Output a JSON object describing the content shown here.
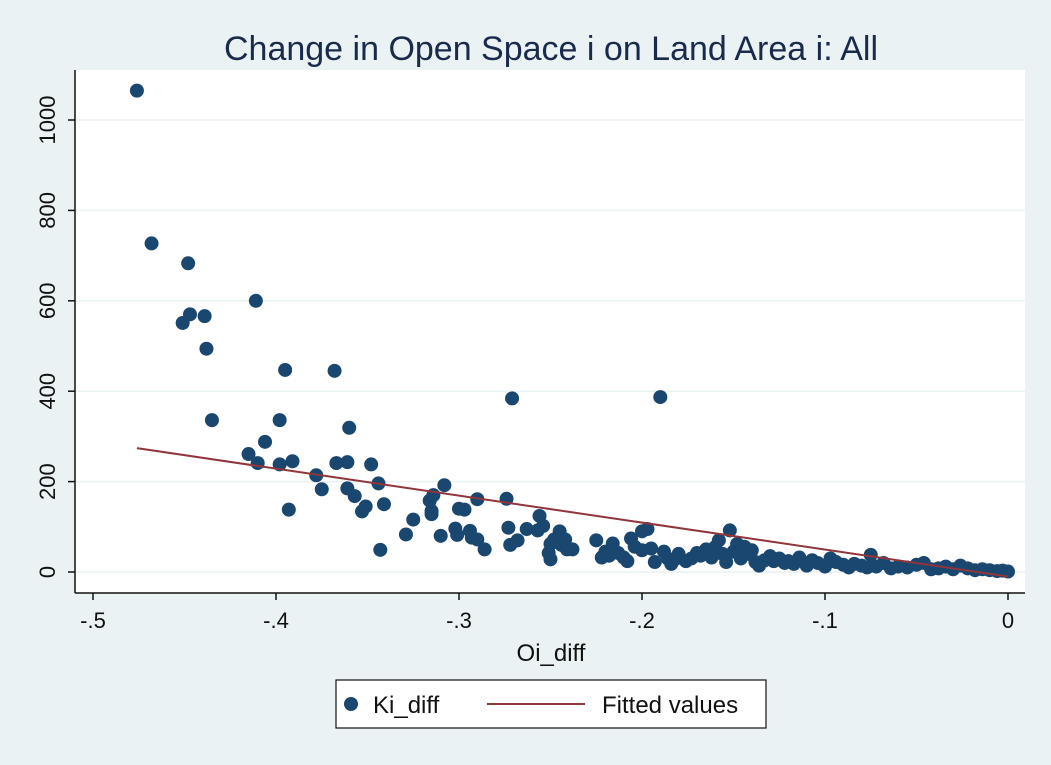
{
  "chart_data": {
    "type": "scatter",
    "title": "Change in Open Space i on Land Area i: All",
    "xlabel": "Oi_diff",
    "ylabel": "",
    "xlim": [
      -0.5,
      0
    ],
    "ylim": [
      0,
      1000
    ],
    "x_ticks": [
      -0.5,
      -0.4,
      -0.3,
      -0.2,
      -0.1,
      0
    ],
    "x_tick_labels": [
      "-.5",
      "-.4",
      "-.3",
      "-.2",
      "-.1",
      "0"
    ],
    "y_ticks": [
      0,
      200,
      400,
      600,
      800,
      1000
    ],
    "y_tick_labels": [
      "0",
      "200",
      "400",
      "600",
      "800",
      "1000"
    ],
    "grid": "horizontal",
    "legend": {
      "position": "bottom",
      "entries": [
        "Ki_diff",
        "Fitted values"
      ]
    },
    "colors": {
      "points": "#1a476f",
      "fit": "#90353b",
      "plot_bg": "#ffffff",
      "page_bg": "#eaf2f3",
      "grid": "#eaf2f3"
    },
    "series": [
      {
        "name": "Ki_diff",
        "kind": "scatter",
        "points": [
          [
            -0.476,
            1065
          ],
          [
            -0.468,
            727
          ],
          [
            -0.448,
            683
          ],
          [
            -0.451,
            551
          ],
          [
            -0.447,
            570
          ],
          [
            -0.439,
            566
          ],
          [
            -0.438,
            494
          ],
          [
            -0.435,
            336
          ],
          [
            -0.411,
            600
          ],
          [
            -0.415,
            261
          ],
          [
            -0.41,
            241
          ],
          [
            -0.406,
            288
          ],
          [
            -0.398,
            336
          ],
          [
            -0.398,
            238
          ],
          [
            -0.395,
            447
          ],
          [
            -0.393,
            138
          ],
          [
            -0.391,
            245
          ],
          [
            -0.378,
            214
          ],
          [
            -0.375,
            183
          ],
          [
            -0.368,
            445
          ],
          [
            -0.367,
            241
          ],
          [
            -0.361,
            243
          ],
          [
            -0.36,
            319
          ],
          [
            -0.361,
            185
          ],
          [
            -0.357,
            168
          ],
          [
            -0.353,
            134
          ],
          [
            -0.351,
            145
          ],
          [
            -0.348,
            238
          ],
          [
            -0.344,
            196
          ],
          [
            -0.341,
            150
          ],
          [
            -0.343,
            49
          ],
          [
            -0.329,
            83
          ],
          [
            -0.325,
            116
          ],
          [
            -0.316,
            158
          ],
          [
            -0.315,
            135
          ],
          [
            -0.315,
            128
          ],
          [
            -0.314,
            170
          ],
          [
            -0.31,
            80
          ],
          [
            -0.308,
            192
          ],
          [
            -0.302,
            96
          ],
          [
            -0.301,
            82
          ],
          [
            -0.3,
            140
          ],
          [
            -0.297,
            138
          ],
          [
            -0.294,
            91
          ],
          [
            -0.293,
            76
          ],
          [
            -0.29,
            72
          ],
          [
            -0.29,
            161
          ],
          [
            -0.286,
            50
          ],
          [
            -0.274,
            162
          ],
          [
            -0.272,
            60
          ],
          [
            -0.273,
            98
          ],
          [
            -0.271,
            384
          ],
          [
            -0.268,
            70
          ],
          [
            -0.263,
            95
          ],
          [
            -0.257,
            92
          ],
          [
            -0.256,
            124
          ],
          [
            -0.254,
            102
          ],
          [
            -0.251,
            42
          ],
          [
            -0.25,
            28
          ],
          [
            -0.25,
            62
          ],
          [
            -0.248,
            72
          ],
          [
            -0.245,
            90
          ],
          [
            -0.244,
            60
          ],
          [
            -0.242,
            72
          ],
          [
            -0.241,
            50
          ],
          [
            -0.238,
            50
          ],
          [
            -0.225,
            70
          ],
          [
            -0.222,
            32
          ],
          [
            -0.22,
            45
          ],
          [
            -0.218,
            36
          ],
          [
            -0.216,
            63
          ],
          [
            -0.213,
            42
          ],
          [
            -0.21,
            32
          ],
          [
            -0.208,
            24
          ],
          [
            -0.206,
            74
          ],
          [
            -0.204,
            56
          ],
          [
            -0.2,
            48
          ],
          [
            -0.2,
            90
          ],
          [
            -0.197,
            95
          ],
          [
            -0.195,
            52
          ],
          [
            -0.193,
            22
          ],
          [
            -0.19,
            387
          ],
          [
            -0.188,
            45
          ],
          [
            -0.186,
            30
          ],
          [
            -0.184,
            18
          ],
          [
            -0.182,
            28
          ],
          [
            -0.18,
            40
          ],
          [
            -0.176,
            24
          ],
          [
            -0.173,
            30
          ],
          [
            -0.17,
            42
          ],
          [
            -0.168,
            36
          ],
          [
            -0.165,
            50
          ],
          [
            -0.162,
            32
          ],
          [
            -0.16,
            55
          ],
          [
            -0.158,
            70
          ],
          [
            -0.156,
            40
          ],
          [
            -0.154,
            22
          ],
          [
            -0.152,
            92
          ],
          [
            -0.15,
            45
          ],
          [
            -0.148,
            62
          ],
          [
            -0.146,
            30
          ],
          [
            -0.144,
            56
          ],
          [
            -0.142,
            40
          ],
          [
            -0.14,
            48
          ],
          [
            -0.138,
            22
          ],
          [
            -0.136,
            14
          ],
          [
            -0.133,
            26
          ],
          [
            -0.13,
            35
          ],
          [
            -0.128,
            24
          ],
          [
            -0.125,
            30
          ],
          [
            -0.122,
            20
          ],
          [
            -0.12,
            24
          ],
          [
            -0.117,
            18
          ],
          [
            -0.114,
            32
          ],
          [
            -0.11,
            14
          ],
          [
            -0.107,
            26
          ],
          [
            -0.104,
            20
          ],
          [
            -0.1,
            12
          ],
          [
            -0.097,
            30
          ],
          [
            -0.094,
            22
          ],
          [
            -0.09,
            16
          ],
          [
            -0.087,
            10
          ],
          [
            -0.084,
            18
          ],
          [
            -0.08,
            14
          ],
          [
            -0.077,
            10
          ],
          [
            -0.075,
            38
          ],
          [
            -0.072,
            12
          ],
          [
            -0.068,
            20
          ],
          [
            -0.064,
            8
          ],
          [
            -0.06,
            12
          ],
          [
            -0.055,
            10
          ],
          [
            -0.05,
            16
          ],
          [
            -0.046,
            20
          ],
          [
            -0.042,
            6
          ],
          [
            -0.038,
            8
          ],
          [
            -0.034,
            12
          ],
          [
            -0.03,
            6
          ],
          [
            -0.026,
            14
          ],
          [
            -0.022,
            8
          ],
          [
            -0.018,
            4
          ],
          [
            -0.014,
            6
          ],
          [
            -0.01,
            4
          ],
          [
            -0.006,
            2
          ],
          [
            -0.003,
            3
          ],
          [
            0.0,
            1
          ]
        ]
      },
      {
        "name": "Fitted values",
        "kind": "line",
        "x": [
          -0.476,
          0.0
        ],
        "y": [
          274,
          -10
        ]
      }
    ]
  }
}
